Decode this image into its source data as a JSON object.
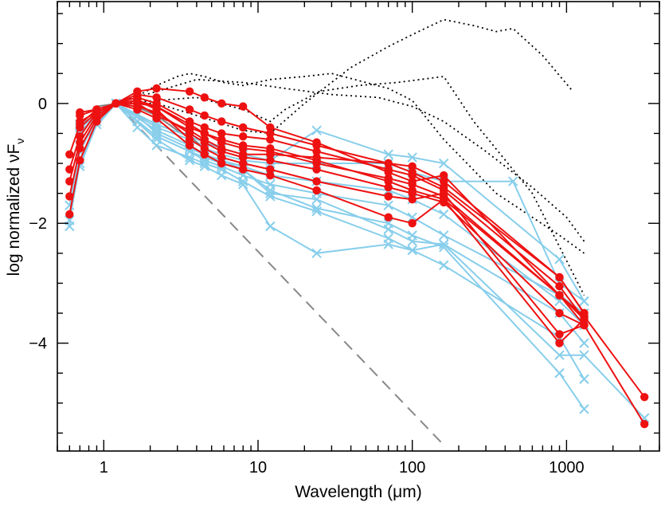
{
  "chart_data": {
    "type": "line",
    "xlabel": "Wavelength (μm)",
    "ylabel_main": "log normalized νF",
    "ylabel_sub": "ν",
    "x_scale": "log",
    "xlim": [
      0.5,
      4000
    ],
    "ylim": [
      -5.8,
      1.7
    ],
    "grid": false,
    "x_ticks": [
      1,
      10,
      100,
      1000
    ],
    "x_tick_labels": [
      "1",
      "10",
      "100",
      "1000"
    ],
    "y_ticks": [
      0,
      -2,
      -4
    ],
    "y_tick_labels": [
      "0",
      "−2",
      "−4"
    ],
    "colors": {
      "red_series": "#ee1111",
      "blue_series": "#87ceeb",
      "dotted_series": "#000000",
      "dashed_series": "#888888",
      "photosphere": "#888888"
    },
    "dashed_line": [
      [
        1.2,
        0.0
      ],
      [
        160,
        -5.7
      ]
    ],
    "photosphere_spectrum": [
      [
        0.9,
        -0.05
      ],
      [
        1.25,
        0.0
      ],
      [
        1.6,
        -0.05
      ],
      [
        2.2,
        -0.2
      ],
      [
        3.0,
        -0.45
      ],
      [
        3.6,
        -0.55
      ],
      [
        4.5,
        -0.75
      ]
    ],
    "dotted_series": [
      [
        [
          1.2,
          0.0
        ],
        [
          1.6,
          0.1
        ],
        [
          2.2,
          0.3
        ],
        [
          3.0,
          0.45
        ],
        [
          3.6,
          0.5
        ],
        [
          4.5,
          0.45
        ],
        [
          6,
          0.35
        ],
        [
          8,
          0.3
        ],
        [
          12,
          0.4
        ],
        [
          20,
          0.45
        ],
        [
          30,
          0.5
        ],
        [
          50,
          0.35
        ],
        [
          70,
          0.25
        ],
        [
          100,
          0.05
        ],
        [
          160,
          -0.6
        ],
        [
          350,
          -1.5
        ],
        [
          900,
          -2.2
        ],
        [
          1300,
          -2.5
        ]
      ],
      [
        [
          1.2,
          0.0
        ],
        [
          2.2,
          0.2
        ],
        [
          4,
          0.4
        ],
        [
          8,
          0.35
        ],
        [
          15,
          0.25
        ],
        [
          30,
          0.15
        ],
        [
          60,
          0.1
        ],
        [
          100,
          -0.05
        ],
        [
          160,
          -0.3
        ],
        [
          300,
          -0.8
        ],
        [
          600,
          -1.4
        ],
        [
          1000,
          -1.9
        ],
        [
          1300,
          -2.3
        ]
      ],
      [
        [
          1.2,
          0.0
        ],
        [
          2.2,
          0.05
        ],
        [
          4,
          0.1
        ],
        [
          8,
          -0.1
        ],
        [
          12,
          -0.3
        ],
        [
          15,
          -0.1
        ],
        [
          25,
          0.2
        ],
        [
          45,
          0.3
        ],
        [
          80,
          0.35
        ],
        [
          160,
          0.45
        ],
        [
          250,
          -0.3
        ],
        [
          600,
          -1.5
        ],
        [
          1300,
          -3.2
        ]
      ],
      [
        [
          1.2,
          0.0
        ],
        [
          2.2,
          0.0
        ],
        [
          4,
          -0.2
        ],
        [
          8,
          -0.45
        ],
        [
          12,
          -0.5
        ],
        [
          20,
          0.0
        ],
        [
          40,
          0.6
        ],
        [
          70,
          0.95
        ],
        [
          100,
          1.15
        ],
        [
          160,
          1.4
        ],
        [
          250,
          1.3
        ],
        [
          350,
          1.2
        ],
        [
          450,
          1.25
        ],
        [
          700,
          0.8
        ],
        [
          1100,
          0.2
        ]
      ]
    ],
    "blue_series": [
      [
        [
          0.6,
          -1.95
        ],
        [
          0.7,
          -1.0
        ],
        [
          0.9,
          -0.3
        ],
        [
          1.2,
          0.0
        ],
        [
          1.65,
          -0.2
        ],
        [
          2.2,
          -0.4
        ],
        [
          3.6,
          -0.6
        ],
        [
          4.5,
          -0.75
        ],
        [
          5.8,
          -0.85
        ],
        [
          8,
          -0.95
        ],
        [
          12,
          -1.0
        ],
        [
          24,
          -1.0
        ],
        [
          70,
          -1.0
        ],
        [
          100,
          -1.15
        ],
        [
          160,
          -1.3
        ],
        [
          450,
          -1.3
        ],
        [
          900,
          -3.0
        ],
        [
          1300,
          -3.3
        ]
      ],
      [
        [
          0.6,
          -1.7
        ],
        [
          0.7,
          -0.8
        ],
        [
          0.9,
          -0.25
        ],
        [
          1.2,
          0.0
        ],
        [
          1.65,
          -0.3
        ],
        [
          2.2,
          -0.55
        ],
        [
          3.6,
          -0.8
        ],
        [
          4.5,
          -0.95
        ],
        [
          5.8,
          -1.05
        ],
        [
          8,
          -1.2
        ],
        [
          12,
          -1.35
        ],
        [
          24,
          -1.5
        ],
        [
          70,
          -1.7
        ],
        [
          100,
          -1.9
        ],
        [
          160,
          -2.2
        ],
        [
          900,
          -3.2
        ],
        [
          1300,
          -3.5
        ]
      ],
      [
        [
          0.7,
          -1.05
        ],
        [
          0.9,
          -0.35
        ],
        [
          1.2,
          0.0
        ],
        [
          1.65,
          -0.4
        ],
        [
          2.2,
          -0.7
        ],
        [
          3.6,
          -0.9
        ],
        [
          4.5,
          -1.0
        ],
        [
          5.8,
          -1.1
        ],
        [
          8,
          -1.3
        ],
        [
          12,
          -1.55
        ],
        [
          24,
          -1.8
        ],
        [
          70,
          -2.25
        ],
        [
          100,
          -2.45
        ],
        [
          160,
          -2.7
        ],
        [
          900,
          -3.9
        ],
        [
          1300,
          -4.6
        ]
      ],
      [
        [
          0.7,
          -0.5
        ],
        [
          0.9,
          -0.2
        ],
        [
          1.2,
          0.0
        ],
        [
          1.65,
          -0.2
        ],
        [
          2.2,
          -0.5
        ],
        [
          3.6,
          -0.75
        ],
        [
          4.5,
          -0.85
        ],
        [
          5.8,
          -0.95
        ],
        [
          8,
          -1.1
        ],
        [
          12,
          -1.5
        ],
        [
          24,
          -1.6
        ],
        [
          70,
          -2.1
        ],
        [
          100,
          -2.3
        ],
        [
          160,
          -2.35
        ],
        [
          900,
          -3.5
        ],
        [
          1300,
          -4.0
        ]
      ],
      [
        [
          0.6,
          -2.05
        ],
        [
          0.7,
          -0.7
        ],
        [
          1.2,
          0.0
        ],
        [
          2.2,
          -0.6
        ],
        [
          3.6,
          -0.95
        ],
        [
          4.5,
          -1.05
        ],
        [
          5.8,
          -1.2
        ],
        [
          8,
          -1.35
        ],
        [
          12,
          -2.05
        ],
        [
          24,
          -2.5
        ],
        [
          70,
          -2.35
        ],
        [
          100,
          -2.45
        ],
        [
          160,
          -2.35
        ],
        [
          900,
          -4.2
        ],
        [
          1300,
          -4.2
        ],
        [
          3200,
          -5.25
        ]
      ],
      [
        [
          0.7,
          -0.4
        ],
        [
          1.2,
          0.0
        ],
        [
          2.2,
          -0.45
        ],
        [
          3.6,
          -0.7
        ],
        [
          4.5,
          -0.85
        ],
        [
          5.8,
          -0.95
        ],
        [
          8,
          -1.05
        ],
        [
          12,
          -1.2
        ],
        [
          24,
          -1.3
        ],
        [
          70,
          -1.45
        ],
        [
          100,
          -1.6
        ],
        [
          160,
          -1.85
        ],
        [
          900,
          -3.3
        ],
        [
          1300,
          -3.7
        ]
      ],
      [
        [
          0.7,
          -0.35
        ],
        [
          1.2,
          0.0
        ],
        [
          2.2,
          -0.35
        ],
        [
          3.6,
          -0.55
        ],
        [
          4.5,
          -0.65
        ],
        [
          5.8,
          -0.75
        ],
        [
          8,
          -0.85
        ],
        [
          12,
          -0.95
        ],
        [
          24,
          -0.45
        ],
        [
          70,
          -0.85
        ],
        [
          100,
          -0.9
        ],
        [
          160,
          -1.0
        ],
        [
          900,
          -2.6
        ],
        [
          1300,
          -3.3
        ]
      ],
      [
        [
          0.7,
          -0.45
        ],
        [
          1.2,
          0.0
        ],
        [
          2.2,
          -0.55
        ],
        [
          3.6,
          -0.8
        ],
        [
          4.5,
          -0.9
        ],
        [
          5.8,
          -1.0
        ],
        [
          8,
          -1.1
        ],
        [
          12,
          -1.45
        ],
        [
          24,
          -1.75
        ],
        [
          70,
          -2.0
        ],
        [
          100,
          -2.2
        ],
        [
          160,
          -2.4
        ],
        [
          900,
          -4.5
        ],
        [
          1300,
          -5.1
        ]
      ]
    ],
    "red_series": [
      [
        [
          0.6,
          -0.85
        ],
        [
          0.7,
          -0.35
        ],
        [
          0.9,
          -0.1
        ],
        [
          1.2,
          0.0
        ],
        [
          1.65,
          0.2
        ],
        [
          2.2,
          0.25
        ],
        [
          3.6,
          0.2
        ],
        [
          4.5,
          0.1
        ],
        [
          5.8,
          0.0
        ],
        [
          8,
          -0.05
        ],
        [
          12,
          -0.4
        ],
        [
          24,
          -0.65
        ],
        [
          70,
          -1.15
        ],
        [
          100,
          -1.3
        ],
        [
          160,
          -1.2
        ],
        [
          900,
          -3.2
        ],
        [
          1300,
          -3.55
        ],
        [
          3200,
          -4.9
        ]
      ],
      [
        [
          0.6,
          -1.1
        ],
        [
          0.7,
          -0.55
        ],
        [
          0.9,
          -0.15
        ],
        [
          1.2,
          0.0
        ],
        [
          1.65,
          0.15
        ],
        [
          2.2,
          0.1
        ],
        [
          3.6,
          -0.1
        ],
        [
          4.5,
          -0.2
        ],
        [
          5.8,
          -0.3
        ],
        [
          8,
          -0.4
        ],
        [
          12,
          -0.5
        ],
        [
          24,
          -0.7
        ],
        [
          70,
          -1.0
        ],
        [
          100,
          -1.05
        ],
        [
          160,
          -1.3
        ],
        [
          900,
          -2.9
        ],
        [
          1300,
          -3.5
        ]
      ],
      [
        [
          0.6,
          -1.3
        ],
        [
          0.7,
          -0.65
        ],
        [
          0.9,
          -0.2
        ],
        [
          1.2,
          0.0
        ],
        [
          1.65,
          0.1
        ],
        [
          2.2,
          0.0
        ],
        [
          3.6,
          -0.3
        ],
        [
          4.5,
          -0.4
        ],
        [
          5.8,
          -0.5
        ],
        [
          8,
          -0.55
        ],
        [
          12,
          -0.6
        ],
        [
          24,
          -0.8
        ],
        [
          70,
          -1.1
        ],
        [
          100,
          -1.2
        ],
        [
          160,
          -1.45
        ],
        [
          900,
          -3.05
        ],
        [
          1300,
          -3.6
        ]
      ],
      [
        [
          0.6,
          -1.55
        ],
        [
          0.7,
          -0.75
        ],
        [
          0.9,
          -0.25
        ],
        [
          1.2,
          0.0
        ],
        [
          1.65,
          0.0
        ],
        [
          2.2,
          -0.05
        ],
        [
          3.6,
          -0.4
        ],
        [
          4.5,
          -0.5
        ],
        [
          5.8,
          -0.65
        ],
        [
          8,
          -0.75
        ],
        [
          12,
          -0.8
        ],
        [
          24,
          -1.0
        ],
        [
          70,
          -1.25
        ],
        [
          100,
          -1.35
        ],
        [
          160,
          -1.55
        ],
        [
          900,
          -3.2
        ],
        [
          1300,
          -3.7
        ]
      ],
      [
        [
          0.6,
          -1.85
        ],
        [
          0.7,
          -0.95
        ],
        [
          0.9,
          -0.3
        ],
        [
          1.2,
          0.0
        ],
        [
          1.65,
          -0.05
        ],
        [
          2.2,
          -0.15
        ],
        [
          3.6,
          -0.5
        ],
        [
          4.5,
          -0.65
        ],
        [
          5.8,
          -0.8
        ],
        [
          8,
          -0.9
        ],
        [
          12,
          -0.95
        ],
        [
          24,
          -1.1
        ],
        [
          70,
          -1.4
        ],
        [
          100,
          -1.5
        ],
        [
          160,
          -1.65
        ],
        [
          900,
          -3.5
        ],
        [
          1300,
          -3.7
        ],
        [
          3200,
          -5.35
        ]
      ],
      [
        [
          0.7,
          -0.4
        ],
        [
          0.9,
          -0.15
        ],
        [
          1.2,
          0.0
        ],
        [
          1.65,
          0.05
        ],
        [
          2.2,
          -0.1
        ],
        [
          3.6,
          -0.6
        ],
        [
          4.5,
          -0.75
        ],
        [
          5.8,
          -0.9
        ],
        [
          8,
          -1.0
        ],
        [
          12,
          -1.1
        ],
        [
          24,
          -1.3
        ],
        [
          70,
          -1.55
        ],
        [
          100,
          -1.6
        ],
        [
          160,
          -1.5
        ],
        [
          900,
          -3.85
        ],
        [
          1300,
          -3.7
        ]
      ],
      [
        [
          0.7,
          -0.3
        ],
        [
          0.9,
          -0.15
        ],
        [
          1.2,
          0.0
        ],
        [
          1.65,
          -0.1
        ],
        [
          2.2,
          -0.25
        ],
        [
          3.6,
          -0.7
        ],
        [
          4.5,
          -0.85
        ],
        [
          5.8,
          -1.0
        ],
        [
          8,
          -1.1
        ],
        [
          12,
          -1.2
        ],
        [
          24,
          -1.45
        ],
        [
          70,
          -1.9
        ],
        [
          100,
          -2.0
        ],
        [
          160,
          -1.6
        ],
        [
          900,
          -4.0
        ],
        [
          1300,
          -3.6
        ]
      ],
      [
        [
          0.7,
          -0.2
        ],
        [
          0.9,
          -0.1
        ],
        [
          1.2,
          0.0
        ],
        [
          1.65,
          0.0
        ],
        [
          2.2,
          -0.2
        ],
        [
          3.6,
          -0.45
        ],
        [
          4.5,
          -0.6
        ],
        [
          5.8,
          -0.75
        ],
        [
          8,
          -0.85
        ],
        [
          12,
          -0.85
        ],
        [
          24,
          -0.9
        ],
        [
          70,
          -1.0
        ],
        [
          100,
          -1.15
        ],
        [
          160,
          -1.4
        ],
        [
          900,
          -2.9
        ],
        [
          1300,
          -3.5
        ]
      ],
      [
        [
          0.7,
          -0.15
        ],
        [
          0.9,
          -0.1
        ],
        [
          1.2,
          0.0
        ],
        [
          1.65,
          0.05
        ],
        [
          2.2,
          -0.05
        ],
        [
          3.6,
          -0.35
        ],
        [
          4.5,
          -0.5
        ],
        [
          5.8,
          -0.6
        ],
        [
          8,
          -0.7
        ],
        [
          12,
          -0.75
        ],
        [
          24,
          -0.95
        ],
        [
          70,
          -1.3
        ],
        [
          100,
          -1.45
        ],
        [
          160,
          -1.6
        ],
        [
          900,
          -3.2
        ],
        [
          1300,
          -3.6
        ]
      ]
    ]
  }
}
